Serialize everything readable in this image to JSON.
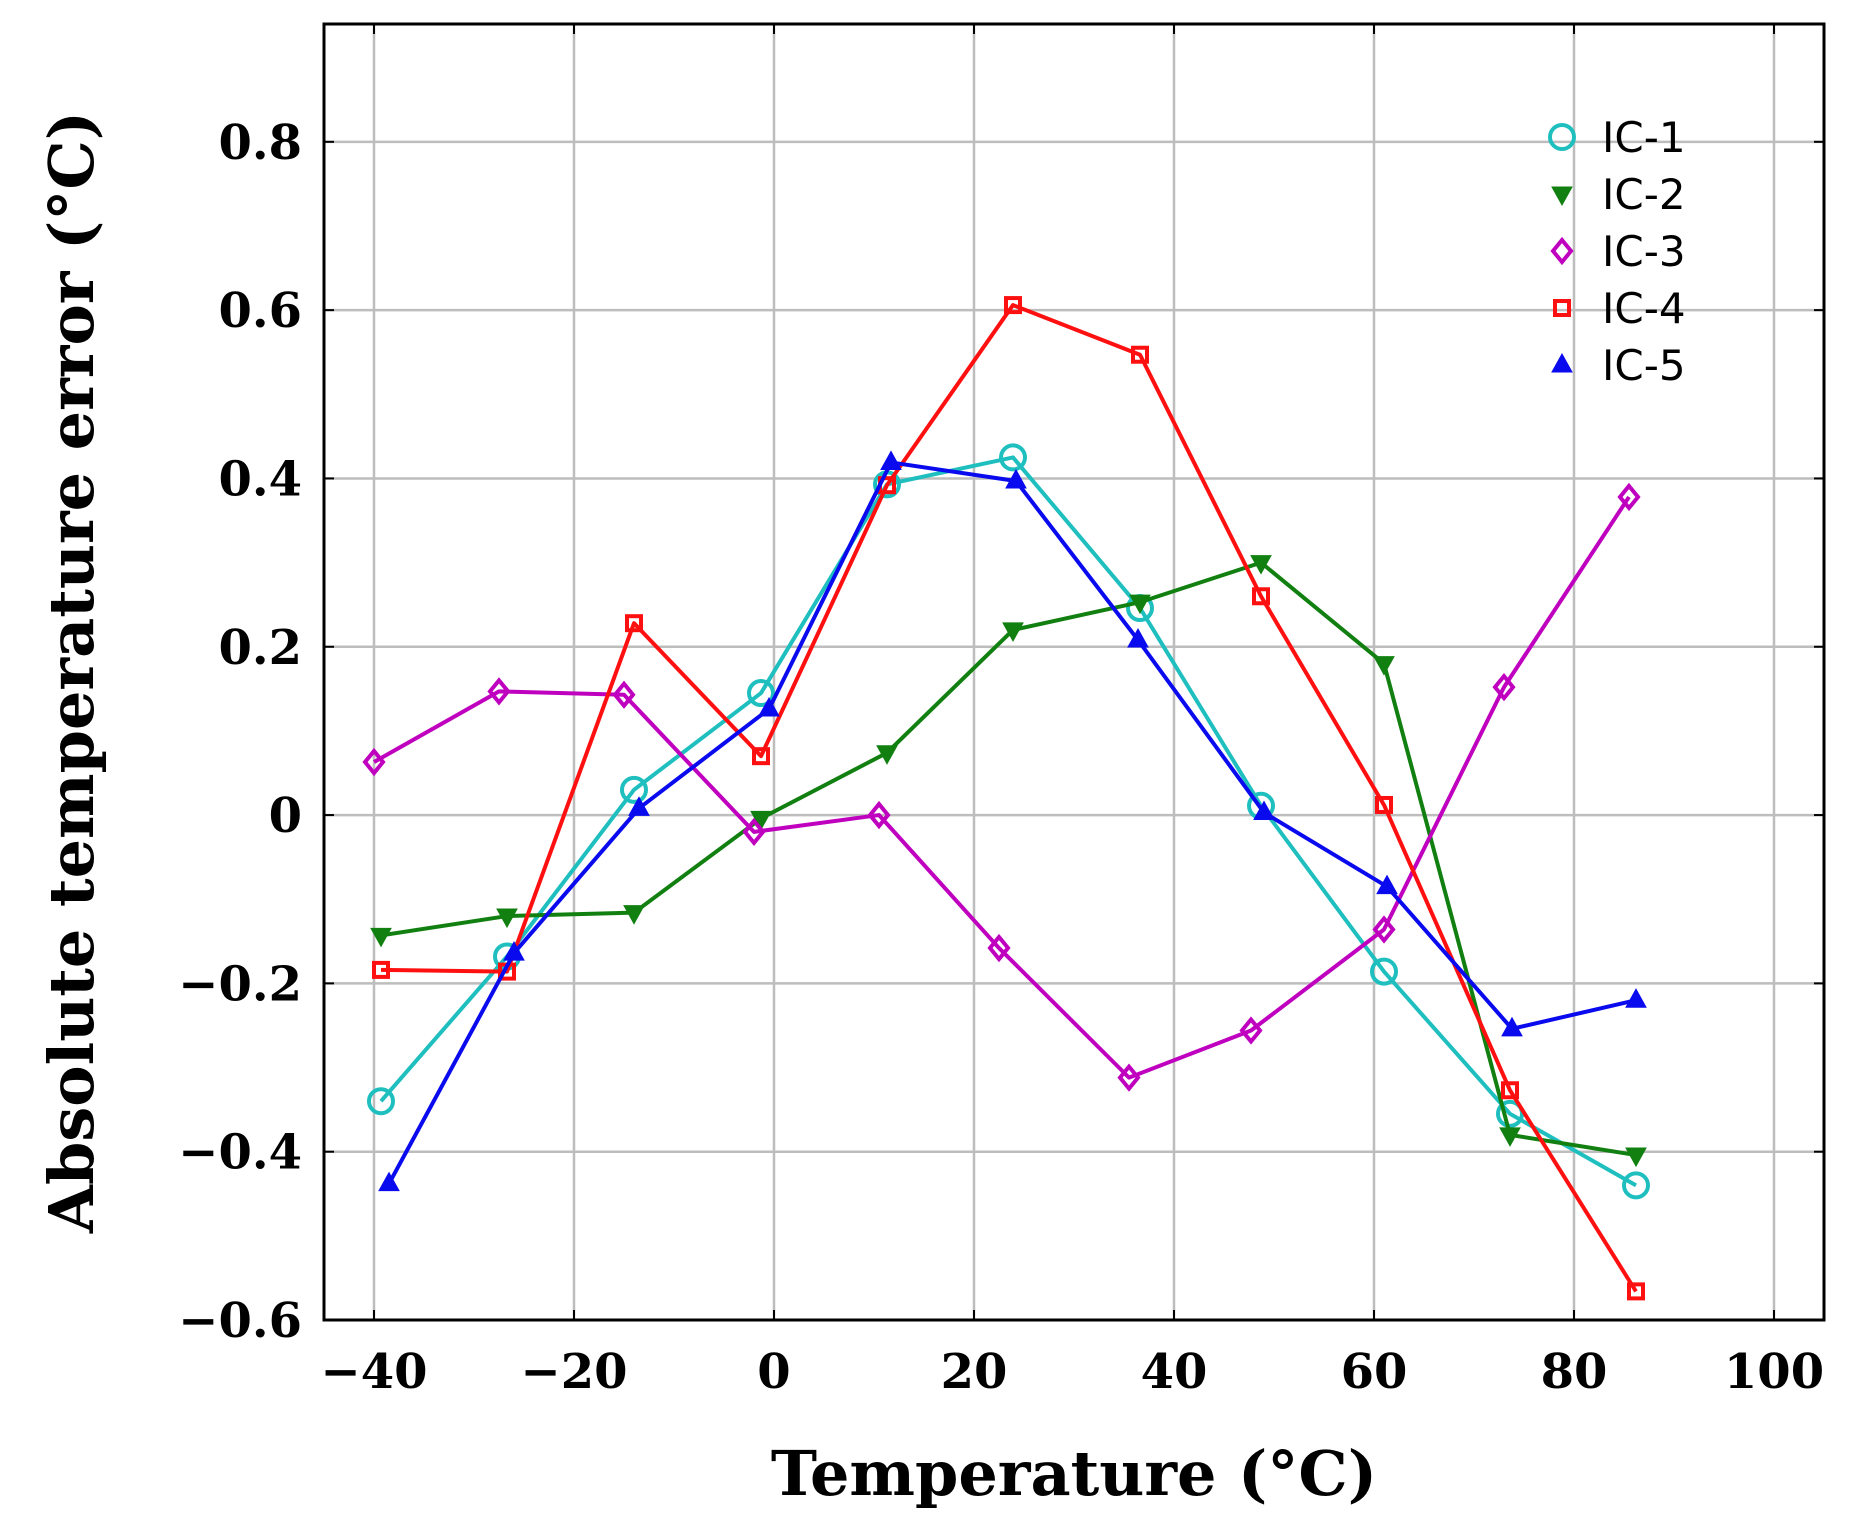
{
  "chart_data": {
    "type": "line",
    "title": "",
    "xlabel": "Temperature (°C)",
    "ylabel": "Absolute temperature error (°C)",
    "xlim": [
      -45,
      105
    ],
    "ylim": [
      -0.6,
      0.94
    ],
    "grid": true,
    "legend_position": "top-right",
    "x_ticks": [
      -40,
      -20,
      0,
      20,
      40,
      60,
      80,
      100
    ],
    "x_tick_labels": [
      "−40",
      "−20",
      "0",
      "20",
      "40",
      "60",
      "80",
      "100"
    ],
    "y_ticks": [
      -0.6,
      -0.4,
      -0.2,
      0,
      0.2,
      0.4,
      0.6,
      0.8
    ],
    "y_tick_labels": [
      "−0.6",
      "−0.4",
      "−0.2",
      "0",
      "0.2",
      "0.4",
      "0.6",
      "0.8"
    ],
    "series": [
      {
        "name": "IC-1",
        "color": "#1fbfbf",
        "marker": "circle",
        "x": [
          -39.3,
          -26.7,
          -14,
          -1.3,
          11.3,
          23.9,
          36.6,
          48.7,
          61,
          73.6,
          86.2
        ],
        "y": [
          -0.34,
          -0.168,
          0.03,
          0.145,
          0.393,
          0.425,
          0.246,
          0.011,
          -0.186,
          -0.355,
          -0.44
        ]
      },
      {
        "name": "IC-2",
        "color": "#118011",
        "marker": "triangle-down",
        "x": [
          -39.3,
          -26.7,
          -14,
          -1.3,
          11.3,
          23.9,
          36.6,
          48.7,
          61,
          73.6,
          86.2
        ],
        "y": [
          -0.143,
          -0.12,
          -0.116,
          -0.004,
          0.074,
          0.22,
          0.253,
          0.3,
          0.18,
          -0.38,
          -0.404
        ]
      },
      {
        "name": "IC-3",
        "color": "#bf00bf",
        "marker": "diamond",
        "x": [
          -40,
          -27.5,
          -15,
          -2,
          10.5,
          22.5,
          35.5,
          47.7,
          61,
          73,
          85.5
        ],
        "y": [
          0.063,
          0.147,
          0.143,
          -0.02,
          0,
          -0.158,
          -0.312,
          -0.256,
          -0.136,
          0.152,
          0.378
        ]
      },
      {
        "name": "IC-4",
        "color": "#ff1010",
        "marker": "square",
        "x": [
          -39.3,
          -26.7,
          -14,
          -1.3,
          11.3,
          23.9,
          36.6,
          48.7,
          61,
          73.6,
          86.2
        ],
        "y": [
          -0.184,
          -0.186,
          0.228,
          0.07,
          0.392,
          0.606,
          0.547,
          0.26,
          0.012,
          -0.327,
          -0.566
        ]
      },
      {
        "name": "IC-5",
        "color": "#0a0aef",
        "marker": "triangle-up",
        "x": [
          -38.5,
          -26,
          -13.5,
          -0.5,
          11.7,
          24.2,
          36.4,
          49,
          61.3,
          73.8,
          86.2
        ],
        "y": [
          -0.438,
          -0.164,
          0.008,
          0.126,
          0.419,
          0.397,
          0.208,
          0.003,
          -0.085,
          -0.254,
          -0.22
        ]
      }
    ]
  }
}
